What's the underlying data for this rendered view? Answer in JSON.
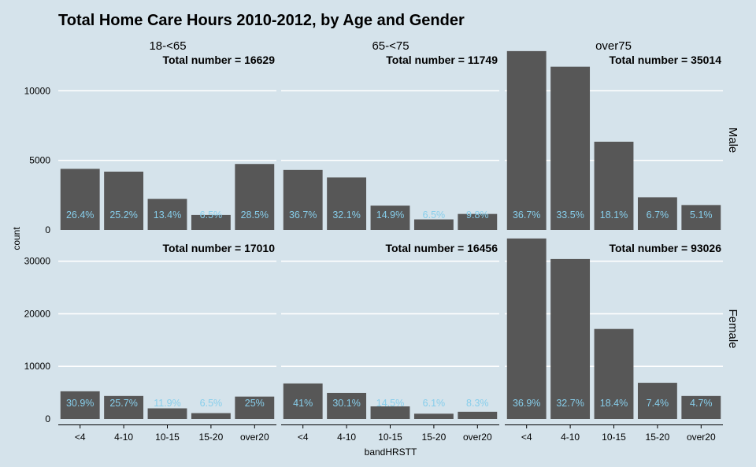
{
  "chart_data": {
    "type": "bar",
    "title": "Total Home Care Hours 2010-2012, by Age and Gender",
    "xlabel": "bandHRSTT",
    "ylabel": "count",
    "categories": [
      "<4",
      "4-10",
      "10-15",
      "15-20",
      "over20"
    ],
    "columns": [
      "18-<65",
      "65-<75",
      "over75"
    ],
    "rows": [
      "Male",
      "Female"
    ],
    "grid": true,
    "colors": {
      "background": "#d5e3eb",
      "bar": "#575757",
      "pct_label": "#87ceeb",
      "grid": "#ffffff"
    },
    "panels": [
      {
        "row": "Male",
        "ylim": [
          0,
          12900
        ],
        "yticks": [
          0,
          5000,
          10000
        ],
        "facets": [
          {
            "age": "18-<65",
            "total_label": "Total number = 16629",
            "values": [
              4390,
              4190,
              2230,
              1080,
              4740
            ],
            "pct": [
              "26.4%",
              "25.2%",
              "13.4%",
              "6.5%",
              "28.5%"
            ]
          },
          {
            "age": "65-<75",
            "total_label": "Total number = 11749",
            "values": [
              4310,
              3770,
              1750,
              760,
              1150
            ],
            "pct": [
              "36.7%",
              "32.1%",
              "14.9%",
              "6.5%",
              "9.8%"
            ]
          },
          {
            "age": "over75",
            "total_label": "Total number = 35014",
            "values": [
              12850,
              11730,
              6340,
              2350,
              1790
            ],
            "pct": [
              "36.7%",
              "33.5%",
              "18.1%",
              "6.7%",
              "5.1%"
            ]
          }
        ]
      },
      {
        "row": "Female",
        "ylim": [
          0,
          34300
        ],
        "yticks": [
          0,
          10000,
          20000,
          30000
        ],
        "facets": [
          {
            "age": "18-<65",
            "total_label": "Total number = 17010",
            "values": [
              5260,
              4370,
              2020,
              1110,
              4250
            ],
            "pct": [
              "30.9%",
              "25.7%",
              "11.9%",
              "6.5%",
              "25%"
            ]
          },
          {
            "age": "65-<75",
            "total_label": "Total number = 16456",
            "values": [
              6750,
              4950,
              2390,
              1000,
              1370
            ],
            "pct": [
              "41%",
              "30.1%",
              "14.5%",
              "6.1%",
              "8.3%"
            ]
          },
          {
            "age": "over75",
            "total_label": "Total number = 93026",
            "values": [
              34330,
              30420,
              17120,
              6880,
              4370
            ],
            "pct": [
              "36.9%",
              "32.7%",
              "18.4%",
              "7.4%",
              "4.7%"
            ]
          }
        ]
      }
    ]
  }
}
